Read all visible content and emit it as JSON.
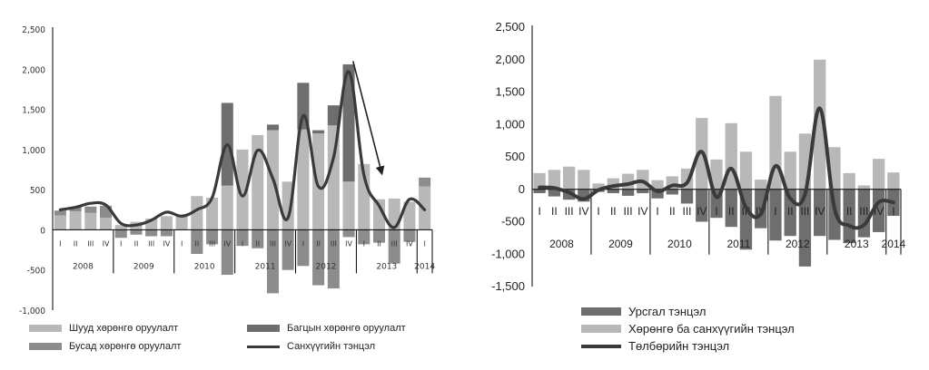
{
  "colors": {
    "light": "#b8b8b8",
    "mid": "#8c8c8c",
    "dark": "#6e6e6e",
    "line": "#3a3a3a",
    "axis": "#000000"
  },
  "chart_data": [
    {
      "type": "bar",
      "stacked": true,
      "ylim": [
        -1000,
        2500
      ],
      "yticks": [
        "2,500",
        "2,000",
        "1,500",
        "1,000",
        "500",
        "0",
        "-500",
        "-1,000"
      ],
      "quarter_labels": [
        "I",
        "II",
        "III",
        "IV",
        "I",
        "II",
        "III",
        "IV",
        "I",
        "II",
        "III",
        "IV",
        "I",
        "II",
        "III",
        "IV",
        "I",
        "II",
        "III",
        "IV",
        "I",
        "II",
        "III",
        "IV",
        "I"
      ],
      "years": [
        {
          "label": "2008",
          "start": 0,
          "end": 4
        },
        {
          "label": "2009",
          "start": 4,
          "end": 8
        },
        {
          "label": "2010",
          "start": 8,
          "end": 12
        },
        {
          "label": "2011",
          "start": 12,
          "end": 16
        },
        {
          "label": "2012",
          "start": 16,
          "end": 20
        },
        {
          "label": "2013",
          "start": 20,
          "end": 24
        },
        {
          "label": "2014",
          "start": 24,
          "end": 25
        }
      ],
      "series": [
        {
          "name": "Шууд хөрөнгө оруулалт",
          "color_key": "light",
          "values": [
            180,
            230,
            210,
            150,
            60,
            100,
            140,
            170,
            190,
            420,
            400,
            550,
            1000,
            1180,
            1240,
            600,
            1250,
            1200,
            1300,
            600,
            820,
            380,
            390,
            350,
            540
          ]
        },
        {
          "name": "Багцын хөрөнгө оруулалт",
          "color_key": "dark",
          "values": [
            0,
            0,
            0,
            0,
            0,
            0,
            0,
            0,
            0,
            0,
            0,
            1030,
            0,
            0,
            70,
            0,
            580,
            40,
            250,
            1460,
            0,
            0,
            0,
            0,
            0
          ]
        },
        {
          "name": "Бусад хөрөнгө оруулалт",
          "color_key": "mid",
          "values": [
            60,
            50,
            80,
            150,
            -100,
            -60,
            -80,
            -80,
            0,
            -300,
            -180,
            -560,
            -200,
            -230,
            -790,
            -500,
            -450,
            -690,
            -730,
            -90,
            -180,
            -160,
            -420,
            -150,
            110
          ]
        }
      ],
      "line": {
        "name": "Санхүүгийн тэнцэл",
        "values": [
          250,
          280,
          330,
          310,
          80,
          60,
          120,
          220,
          170,
          250,
          400,
          1060,
          420,
          990,
          640,
          150,
          1420,
          540,
          900,
          1970,
          680,
          300,
          30,
          380,
          250
        ]
      },
      "annotation": "arrow"
    },
    {
      "type": "bar",
      "stacked": false,
      "ylim": [
        -1500,
        2500
      ],
      "yticks": [
        "2,500",
        "2,000",
        "1,500",
        "1,000",
        "500",
        "0",
        "-500",
        "-1,000",
        "-1,500"
      ],
      "quarter_labels": [
        "I",
        "II",
        "III",
        "IV",
        "I",
        "II",
        "III",
        "IV",
        "I",
        "II",
        "III",
        "IV",
        "I",
        "II",
        "III",
        "IV",
        "I",
        "II",
        "III",
        "IV",
        "I",
        "II",
        "III",
        "IV",
        "I"
      ],
      "years": [
        {
          "label": "2008",
          "start": 0,
          "end": 4
        },
        {
          "label": "2009",
          "start": 4,
          "end": 8
        },
        {
          "label": "2010",
          "start": 8,
          "end": 12
        },
        {
          "label": "2011",
          "start": 12,
          "end": 16
        },
        {
          "label": "2012",
          "start": 16,
          "end": 20
        },
        {
          "label": "2013",
          "start": 20,
          "end": 24
        },
        {
          "label": "2014",
          "start": 24,
          "end": 25
        }
      ],
      "series": [
        {
          "name": "Урсгал тэнцэл",
          "color_key": "dark",
          "values": [
            -60,
            -110,
            -160,
            -190,
            -40,
            -60,
            -100,
            -60,
            -140,
            -80,
            -220,
            -500,
            -440,
            -580,
            -930,
            -600,
            -790,
            -720,
            -1190,
            -720,
            -780,
            -830,
            -740,
            -660,
            -410
          ]
        },
        {
          "name": "Хөрөнгө ба санхүүгийн тэнцэл",
          "color_key": "light",
          "values": [
            250,
            300,
            350,
            300,
            90,
            170,
            240,
            300,
            140,
            200,
            320,
            1100,
            460,
            1020,
            580,
            150,
            1440,
            580,
            860,
            2000,
            650,
            250,
            60,
            470,
            260
          ]
        }
      ],
      "line": {
        "name": "Төлбөрийн тэнцэл",
        "values": [
          30,
          20,
          -50,
          -150,
          -10,
          50,
          80,
          120,
          -30,
          60,
          100,
          580,
          -120,
          320,
          -280,
          -380,
          360,
          -140,
          -80,
          1250,
          -290,
          -560,
          -550,
          -200,
          -200
        ]
      }
    }
  ]
}
